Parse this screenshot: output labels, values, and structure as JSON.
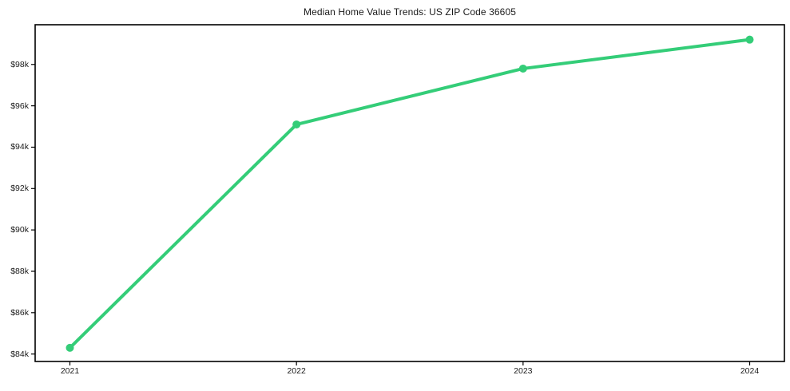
{
  "chart_data": {
    "type": "line",
    "title": "Median Home Value Trends: US ZIP Code 36605",
    "categories": [
      "2021",
      "2022",
      "2023",
      "2024"
    ],
    "values": [
      84300,
      95100,
      97800,
      99200
    ],
    "xlabel": "",
    "ylabel": "",
    "ylim": [
      83640,
      99920
    ],
    "y_ticks": [
      {
        "value": 84000,
        "label": "$84k"
      },
      {
        "value": 86000,
        "label": "$86k"
      },
      {
        "value": 88000,
        "label": "$88k"
      },
      {
        "value": 90000,
        "label": "$90k"
      },
      {
        "value": 92000,
        "label": "$92k"
      },
      {
        "value": 94000,
        "label": "$94k"
      },
      {
        "value": 96000,
        "label": "$96k"
      },
      {
        "value": 98000,
        "label": "$98k"
      }
    ],
    "grid": false,
    "legend_position": "none",
    "line_color": "#34cd78",
    "marker_color": "#34cd78",
    "axis_color": "#000000",
    "text_color": "#1a1a1a",
    "background_color": "#ffffff"
  }
}
